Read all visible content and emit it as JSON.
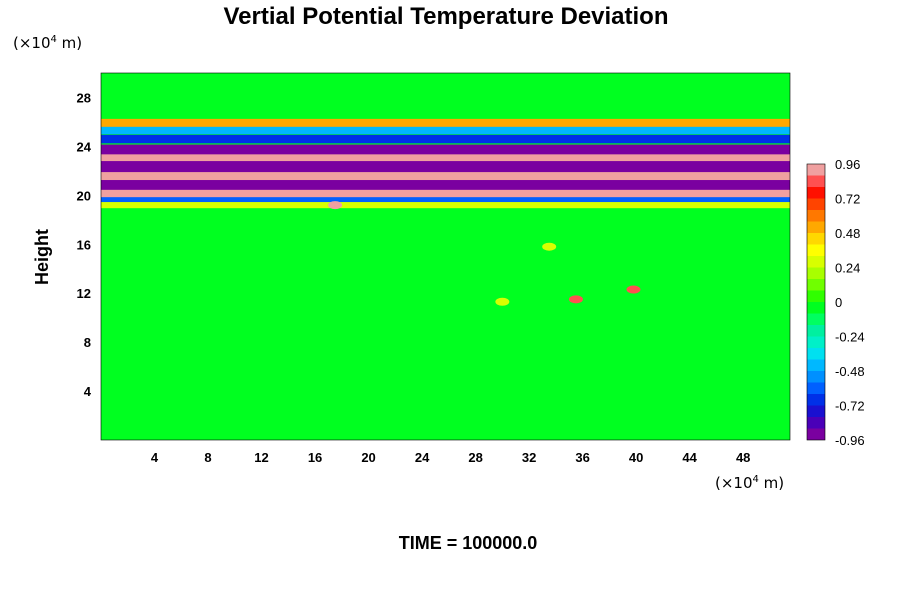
{
  "chart_data": {
    "type": "heatmap",
    "title": "Vertial Potential Temperature Deviation",
    "xlabel": "",
    "ylabel": "Height",
    "x_unit_prefix": "(×10",
    "x_unit_exp": "4",
    "x_unit_suffix": " m)",
    "y_unit_prefix": "(×10",
    "y_unit_exp": "4",
    "y_unit_suffix": " m)",
    "xlim": [
      0,
      51.5
    ],
    "ylim": [
      0,
      30
    ],
    "x_ticks": [
      4,
      8,
      12,
      16,
      20,
      24,
      28,
      32,
      36,
      40,
      44,
      48
    ],
    "y_ticks": [
      4,
      8,
      12,
      16,
      20,
      24,
      28
    ],
    "colorbar": {
      "range": [
        -0.96,
        0.96
      ],
      "tick_values": [
        0.96,
        0.72,
        0.48,
        0.24,
        0,
        -0.24,
        -0.48,
        -0.72,
        -0.96
      ],
      "tick_labels": [
        "0.96",
        "0.72",
        "0.48",
        "0.24",
        "0",
        "-0.24",
        "-0.48",
        "-0.72",
        "-0.96"
      ],
      "levels": 24
    },
    "background_value": 0,
    "bands": [
      {
        "y_center": 25.9,
        "half_width": 0.35,
        "value": 0.55
      },
      {
        "y_center": 25.3,
        "half_width": 0.3,
        "value": -0.45
      },
      {
        "y_center": 24.6,
        "half_width": 0.35,
        "value": -0.7
      },
      {
        "y_center": 23.7,
        "half_width": 0.45,
        "value": -0.96
      },
      {
        "y_center": 23.0,
        "half_width": 0.35,
        "value": 0.96
      },
      {
        "y_center": 22.3,
        "half_width": 0.5,
        "value": -0.96
      },
      {
        "y_center": 21.5,
        "half_width": 0.4,
        "value": 0.96
      },
      {
        "y_center": 20.8,
        "half_width": 0.45,
        "value": -0.96
      },
      {
        "y_center": 20.1,
        "half_width": 0.35,
        "value": 0.96
      },
      {
        "y_center": 19.6,
        "half_width": 0.25,
        "value": -0.6
      },
      {
        "y_center": 19.2,
        "half_width": 0.25,
        "value": 0.3
      }
    ],
    "annotations": [
      {
        "x": 17.5,
        "y": 19.2,
        "value": 0.9
      },
      {
        "x": 35.5,
        "y": 11.5,
        "value": 0.8
      },
      {
        "x": 39.8,
        "y": 12.3,
        "value": 0.85
      },
      {
        "x": 33.5,
        "y": 15.8,
        "value": 0.25
      },
      {
        "x": 30.0,
        "y": 11.3,
        "value": 0.25
      }
    ],
    "footer_text": "TIME = 100000.0"
  },
  "colors": {
    "palette": [
      "#7a00a0",
      "#4a00b8",
      "#1a10d0",
      "#0030e8",
      "#0060ff",
      "#0090ff",
      "#00b8ff",
      "#00e0f0",
      "#00f0c8",
      "#00f0a0",
      "#00ff60",
      "#00ff20",
      "#30ff00",
      "#70ff00",
      "#a8ff00",
      "#d8ff00",
      "#ffff00",
      "#ffd800",
      "#ffa800",
      "#ff7800",
      "#ff4400",
      "#ff1000",
      "#ff5050",
      "#f0a0a0"
    ]
  }
}
